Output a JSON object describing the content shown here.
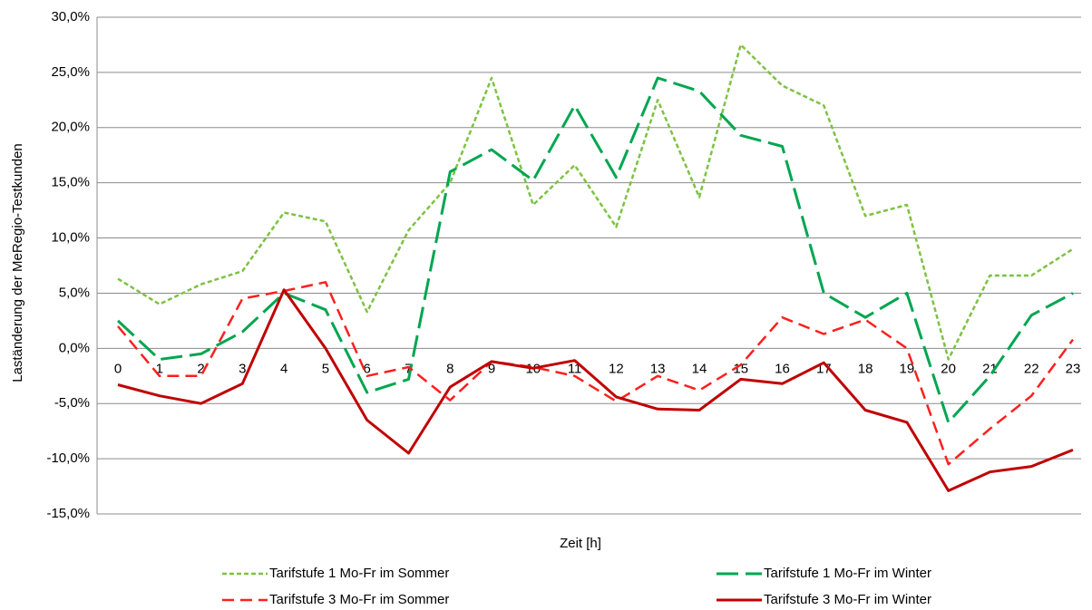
{
  "chart_data": {
    "type": "line",
    "x_label": "Zeit [h]",
    "y_label": "Laständerung der MeRegio-Testkunden",
    "categories": [
      "0",
      "1",
      "2",
      "3",
      "4",
      "5",
      "6",
      "7",
      "8",
      "9",
      "10",
      "11",
      "12",
      "13",
      "14",
      "15",
      "16",
      "17",
      "18",
      "19",
      "20",
      "21",
      "22",
      "23"
    ],
    "ylim": [
      -15,
      30
    ],
    "yticks": [
      {
        "value": -15,
        "label": "-15,0%"
      },
      {
        "value": -10,
        "label": "-10,0%"
      },
      {
        "value": -5,
        "label": "-5,0%"
      },
      {
        "value": 0,
        "label": "0,0%"
      },
      {
        "value": 5,
        "label": "5,0%"
      },
      {
        "value": 10,
        "label": "10,0%"
      },
      {
        "value": 15,
        "label": "15,0%"
      },
      {
        "value": 20,
        "label": "20,0%"
      },
      {
        "value": 25,
        "label": "25,0%"
      },
      {
        "value": 30,
        "label": "30,0%"
      }
    ],
    "grid": true,
    "legend": "bottom",
    "series": [
      {
        "name": "Tarifstufe 1 Mo-Fr im Sommer",
        "color": "#7dc242",
        "style": "dotted",
        "values": [
          6.3,
          4.0,
          5.8,
          7.0,
          12.3,
          11.5,
          3.3,
          10.7,
          15.0,
          24.5,
          13.0,
          16.6,
          11.0,
          22.5,
          13.7,
          27.5,
          23.8,
          22.0,
          12.0,
          13.0,
          -1.0,
          6.6,
          6.6,
          9.0
        ]
      },
      {
        "name": "Tarifstufe 1 Mo-Fr im Winter",
        "color": "#00a650",
        "style": "long-dashed",
        "values": [
          2.5,
          -1.0,
          -0.5,
          1.5,
          5.0,
          3.5,
          -4.0,
          -2.8,
          16.0,
          18.0,
          15.2,
          22.0,
          15.5,
          24.5,
          23.3,
          19.3,
          18.3,
          5.0,
          2.8,
          5.0,
          -6.7,
          -2.5,
          3.0,
          5.0
        ]
      },
      {
        "name": "Tarifstufe 3 Mo-Fr im Sommer",
        "color": "#ff1f1f",
        "style": "dashed",
        "values": [
          2.0,
          -2.5,
          -2.5,
          4.5,
          5.2,
          6.0,
          -2.5,
          -1.7,
          -4.7,
          -1.2,
          -1.7,
          -2.5,
          -4.8,
          -2.5,
          -3.8,
          -1.5,
          2.8,
          1.3,
          2.6,
          0.0,
          -10.5,
          -7.3,
          -4.3,
          0.8
        ]
      },
      {
        "name": "Tarifstufe 3 Mo-Fr im Winter",
        "color": "#c00000",
        "style": "solid",
        "values": [
          -3.3,
          -4.3,
          -5.0,
          -3.2,
          5.3,
          0.0,
          -6.5,
          -9.5,
          -3.5,
          -1.2,
          -1.8,
          -1.1,
          -4.4,
          -5.5,
          -5.6,
          -2.8,
          -3.2,
          -1.3,
          -5.6,
          -6.7,
          -12.9,
          -11.2,
          -10.7,
          -9.2
        ]
      }
    ]
  }
}
